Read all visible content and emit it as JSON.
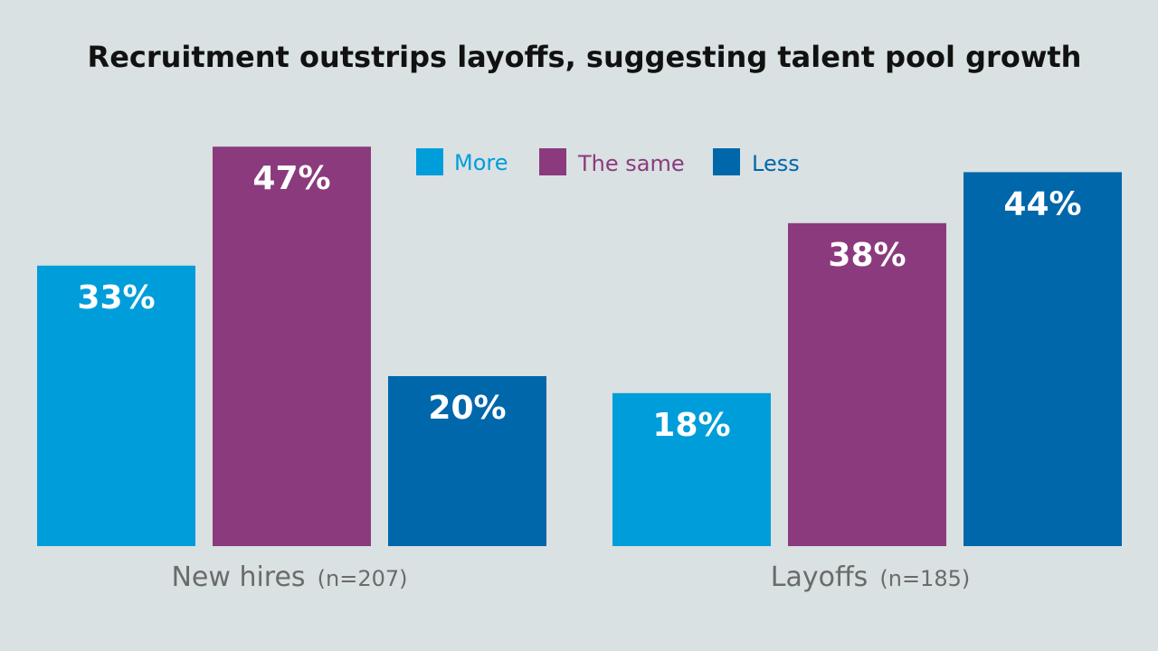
{
  "chart_data": {
    "type": "bar",
    "title": "Recruitment outstrips layoffs, suggesting talent pool growth",
    "categories": [
      {
        "name": "New hires",
        "n": "(n=207)"
      },
      {
        "name": "Layoffs",
        "n": "(n=185)"
      }
    ],
    "series": [
      {
        "name": "More",
        "color": "#009ddb",
        "values": [
          33,
          18
        ],
        "labels": [
          "33%",
          "18%"
        ]
      },
      {
        "name": "The same",
        "color": "#8b3a7e",
        "values": [
          47,
          38
        ],
        "labels": [
          "47%",
          "38%"
        ]
      },
      {
        "name": "Less",
        "color": "#0067ab",
        "values": [
          20,
          44
        ],
        "labels": [
          "20%",
          "44%"
        ]
      }
    ],
    "ylim": [
      0,
      50
    ],
    "grid": false,
    "legend_position": "top-center"
  }
}
